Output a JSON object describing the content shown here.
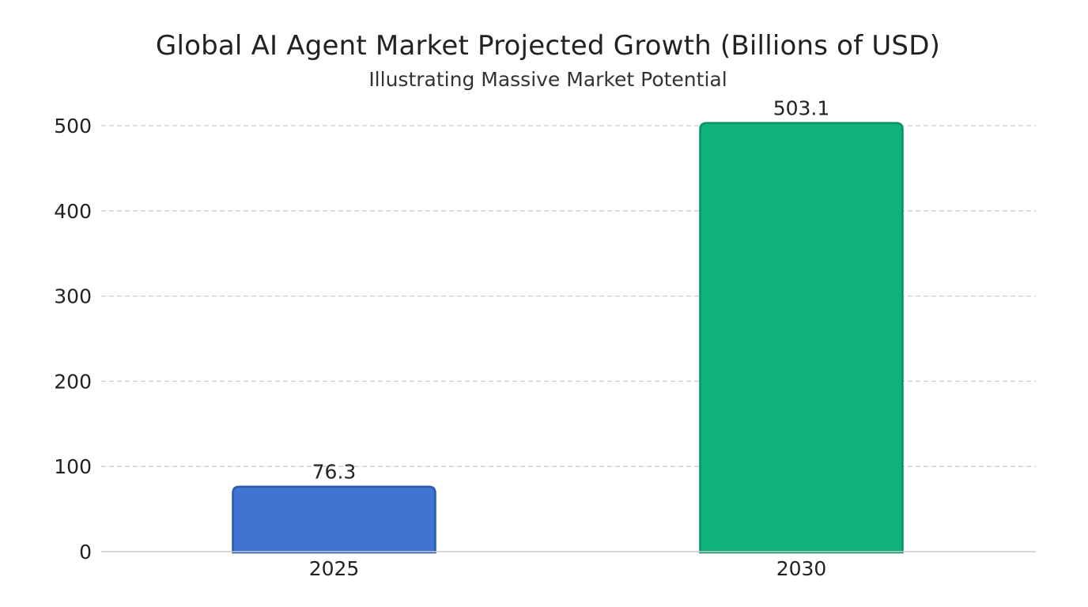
{
  "chart_data": {
    "type": "bar",
    "title": "Global AI Agent Market Projected Growth (Billions of USD)",
    "subtitle": "Illustrating Massive Market Potential",
    "xlabel": "",
    "ylabel": "",
    "categories": [
      "2025",
      "2030"
    ],
    "values": [
      76.3,
      503.1
    ],
    "value_labels": [
      "76.3",
      "503.1"
    ],
    "ylim": [
      0,
      500
    ],
    "yticks": [
      0,
      100,
      200,
      300,
      400,
      500
    ],
    "ytick_labels": [
      "0",
      "100",
      "200",
      "300",
      "400",
      "500"
    ],
    "grid": true,
    "legend": "none",
    "colors": {
      "bars": [
        "#3f74d1",
        "#10b27c"
      ],
      "bar_edges": [
        "#2d5aa8",
        "#0c8f63"
      ],
      "grid": "#cccccc",
      "axis": "#cccccc"
    }
  }
}
